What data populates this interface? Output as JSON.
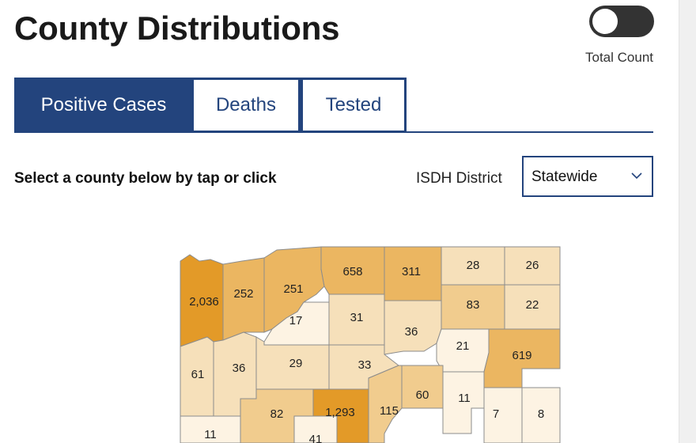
{
  "header": {
    "title": "County Distributions",
    "toggle_label": "Total Count"
  },
  "tabs": [
    {
      "label": "Positive Cases",
      "active": true
    },
    {
      "label": "Deaths",
      "active": false
    },
    {
      "label": "Tested",
      "active": false
    }
  ],
  "filters": {
    "instruction": "Select a county below by tap or click",
    "district_label": "ISDH District",
    "district_value": "Statewide"
  },
  "colors": {
    "accent": "#23447d",
    "map_high": "#e39a28",
    "map_mid_high": "#ebb661",
    "map_mid": "#f1cc8e",
    "map_low": "#f6e0ba",
    "map_lowest": "#fdf3e3",
    "county_border": "#8c8c8c"
  },
  "map": {
    "counties": [
      {
        "value": "2,036",
        "shade": "high"
      },
      {
        "value": "252",
        "shade": "mid_high"
      },
      {
        "value": "251",
        "shade": "mid_high"
      },
      {
        "value": "658",
        "shade": "mid_high"
      },
      {
        "value": "311",
        "shade": "mid_high"
      },
      {
        "value": "28",
        "shade": "low"
      },
      {
        "value": "26",
        "shade": "low"
      },
      {
        "value": "83",
        "shade": "mid"
      },
      {
        "value": "22",
        "shade": "low"
      },
      {
        "value": "17",
        "shade": "lowest"
      },
      {
        "value": "31",
        "shade": "low"
      },
      {
        "value": "36",
        "shade": "low"
      },
      {
        "value": "21",
        "shade": "lowest"
      },
      {
        "value": "619",
        "shade": "mid_high"
      },
      {
        "value": "61",
        "shade": "low"
      },
      {
        "value": "36",
        "shade": "low"
      },
      {
        "value": "29",
        "shade": "low"
      },
      {
        "value": "33",
        "shade": "low"
      },
      {
        "value": "60",
        "shade": "mid"
      },
      {
        "value": "11",
        "shade": "lowest"
      },
      {
        "value": "7",
        "shade": "lowest"
      },
      {
        "value": "8",
        "shade": "lowest"
      },
      {
        "value": "82",
        "shade": "mid"
      },
      {
        "value": "1,293",
        "shade": "high"
      },
      {
        "value": "115",
        "shade": "mid"
      },
      {
        "value": "11",
        "shade": "lowest"
      },
      {
        "value": "41",
        "shade": "lowest"
      }
    ]
  }
}
